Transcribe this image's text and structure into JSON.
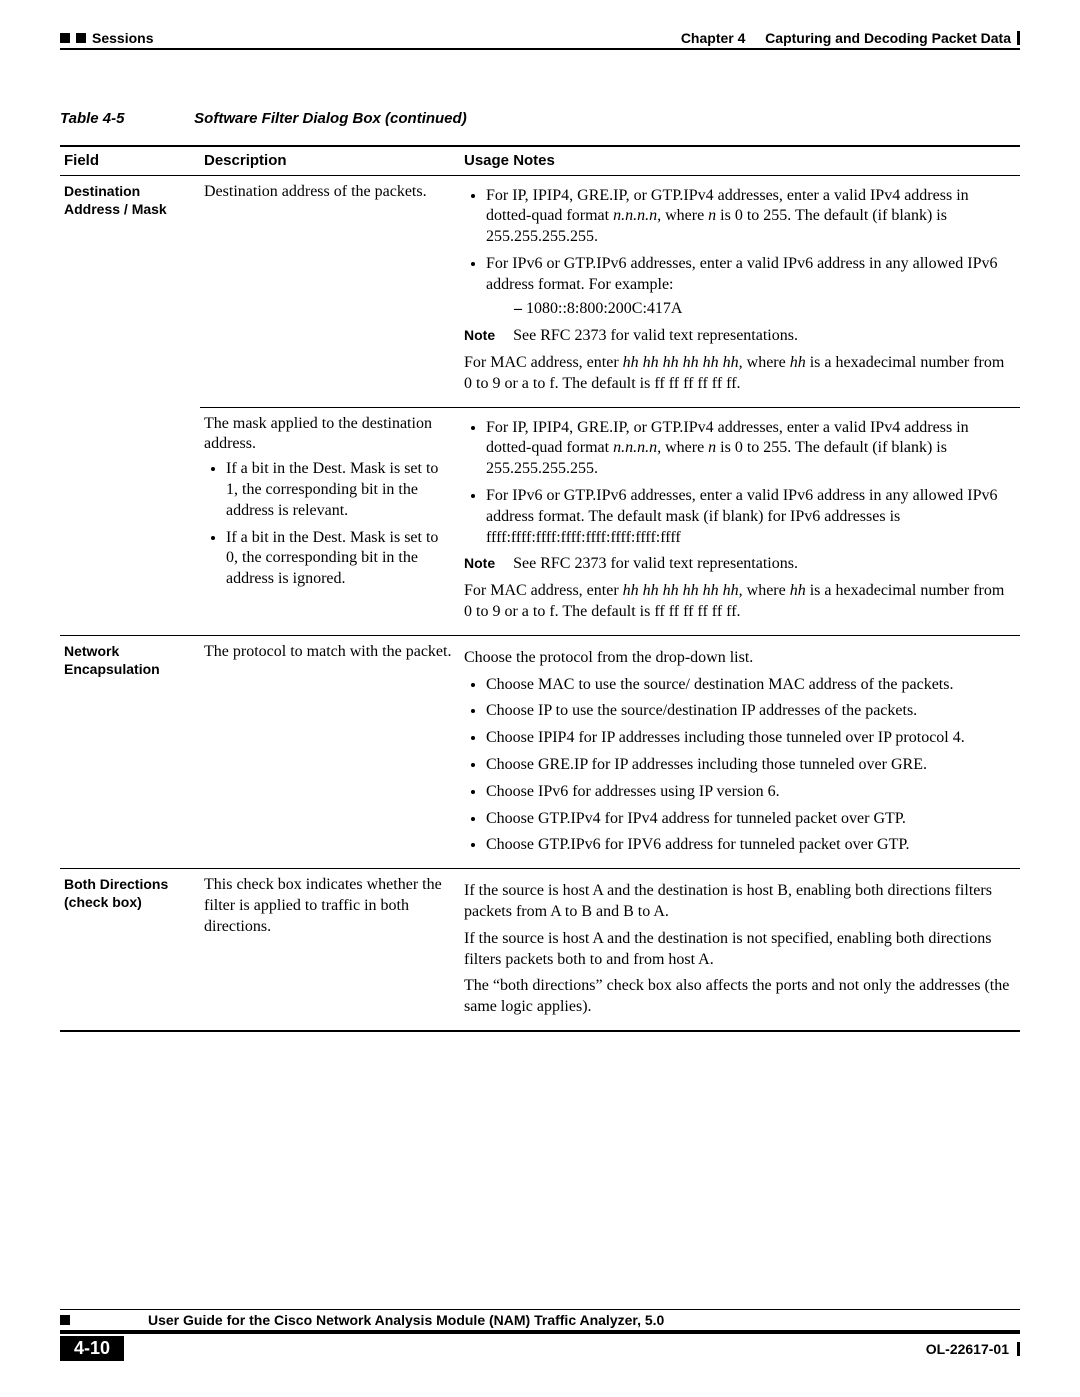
{
  "colors": {
    "text": "#000000",
    "bg": "#ffffff"
  },
  "header": {
    "section": "Sessions",
    "chapter_label": "Chapter 4",
    "chapter_title": "Capturing and Decoding Packet Data"
  },
  "caption": {
    "num": "Table 4-5",
    "title": "Software Filter Dialog Box (continued)"
  },
  "columns": {
    "field": "Field",
    "desc": "Description",
    "usage": "Usage Notes"
  },
  "rows": {
    "dest": {
      "field": "Destination Address / Mask",
      "desc1": "Destination address of the packets.",
      "usage1": {
        "b1a": "For IP, IPIP4, GRE.IP, or GTP.IPv4 addresses, enter a valid IPv4 address in dotted-quad format ",
        "b1b": "n.n.n.n,",
        "b1c": " where ",
        "b1d": "n",
        "b1e": " is 0 to 255. The default (if blank) is 255.255.255.255.",
        "b2": "For IPv6 or GTP.IPv6 addresses, enter a valid IPv6 address in any allowed IPv6 address format. For example:",
        "b2d1": "1080::8:800:200C:417A",
        "note_label": "Note",
        "note_text": "See RFC 2373 for valid text representations.",
        "mac_a": "For MAC address, enter ",
        "mac_b": "hh hh hh hh hh hh,",
        "mac_c": " where ",
        "mac_d": "hh",
        "mac_e": " is a hexadecimal number from 0 to 9 or a to f. The default is ff ff ff ff ff ff."
      },
      "desc2": {
        "lead": "The mask applied to the destination address.",
        "b1": "If a bit in the Dest. Mask is set to 1, the corresponding bit in the address is relevant.",
        "b2": "If a bit in the Dest. Mask is set to 0, the corresponding bit in the address is ignored."
      },
      "usage2": {
        "b1a": "For IP, IPIP4, GRE.IP, or GTP.IPv4 addresses, enter a valid IPv4 address in dotted-quad format ",
        "b1b": "n.n.n.n,",
        "b1c": " where ",
        "b1d": "n",
        "b1e": " is 0 to 255. The default (if blank) is 255.255.255.255.",
        "b2": "For IPv6 or GTP.IPv6 addresses, enter a valid IPv6 address in any allowed IPv6 address format. The default mask (if blank) for IPv6 addresses is ffff:ffff:ffff:ffff:ffff:ffff:ffff:ffff",
        "note_label": "Note",
        "note_text": "See RFC 2373 for valid text representations.",
        "mac_a": "For MAC address, enter ",
        "mac_b": "hh hh hh hh hh hh,",
        "mac_c": " where ",
        "mac_d": "hh",
        "mac_e": " is a hexadecimal number from 0 to 9 or a to f. The default is ff ff ff ff ff ff."
      }
    },
    "net": {
      "field": "Network Encapsulation",
      "desc": "The protocol to match with the packet.",
      "lead": "Choose the protocol from the drop-down list.",
      "b1": "Choose MAC to use the source/ destination MAC address of the packets.",
      "b2": "Choose IP to use the source/destination IP addresses of the packets.",
      "b3": "Choose IPIP4 for IP addresses including those tunneled over IP protocol 4.",
      "b4": "Choose GRE.IP for IP addresses including those tunneled over GRE.",
      "b5": "Choose IPv6 for addresses using IP version 6.",
      "b6": "Choose GTP.IPv4 for IPv4 address for tunneled packet over GTP.",
      "b7": "Choose GTP.IPv6 for IPV6 address for tunneled packet over GTP."
    },
    "both": {
      "field": "Both Directions (check box)",
      "desc": "This check box indicates whether the filter is applied to traffic in both directions.",
      "p1": "If the source is host A and the destination is host B, enabling both directions filters packets from A to B and B to A.",
      "p2": "If the source is host A and the destination is not specified, enabling both directions filters packets both to and from host A.",
      "p3": "The “both directions” check box also affects the ports and not only the addresses (the same logic applies)."
    }
  },
  "footer": {
    "title": "User Guide for the Cisco Network Analysis Module (NAM) Traffic Analyzer, 5.0",
    "page": "4-10",
    "docid": "OL-22617-01"
  }
}
